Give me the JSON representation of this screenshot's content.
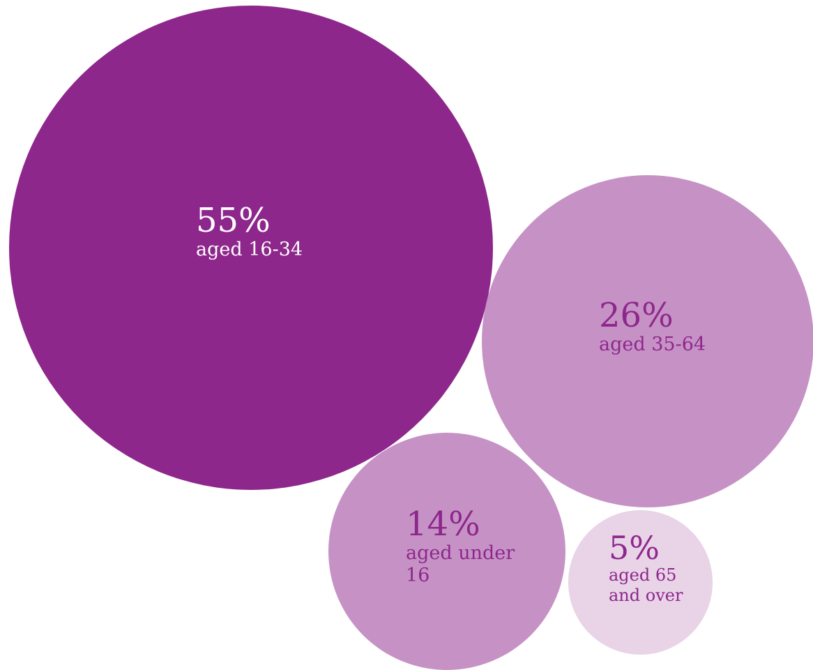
{
  "chart_data": {
    "type": "bubble",
    "title": "",
    "series": [
      {
        "value_label": "55%",
        "value": 55,
        "label": "aged 16-34",
        "fill": "#8e278c",
        "text_color": "#ffffff"
      },
      {
        "value_label": "26%",
        "value": 26,
        "label": "aged 35-64",
        "fill": "#c692c5",
        "text_color": "#8e278c"
      },
      {
        "value_label": "14%",
        "value": 14,
        "label": "aged under 16",
        "fill": "#c692c5",
        "text_color": "#8e278c"
      },
      {
        "value_label": "5%",
        "value": 5,
        "label": "aged 65 and over",
        "fill": "#e8d3e7",
        "text_color": "#8e278c"
      }
    ]
  }
}
